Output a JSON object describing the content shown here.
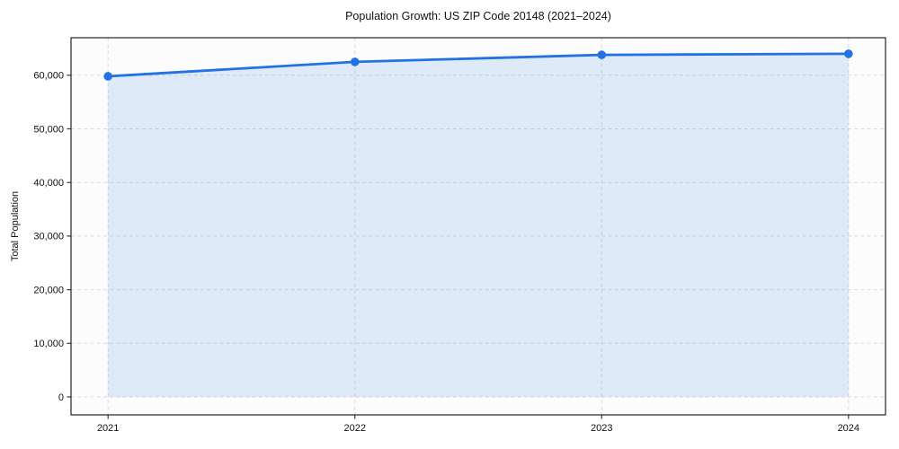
{
  "chart_data": {
    "type": "area",
    "title": "Population Growth: US ZIP Code 20148 (2021–2024)",
    "xlabel": "",
    "ylabel": "Total Population",
    "x": [
      2021,
      2022,
      2023,
      2024
    ],
    "series": [
      {
        "name": "Total Population",
        "values": [
          59800,
          62500,
          63800,
          64000
        ]
      }
    ],
    "xticks": [
      2021,
      2022,
      2023,
      2024
    ],
    "yticks": [
      0,
      10000,
      20000,
      30000,
      40000,
      50000,
      60000
    ],
    "xlim": [
      2020.85,
      2024.15
    ],
    "ylim": [
      -3350,
      67000
    ],
    "grid": true,
    "legend": false,
    "colors": {
      "line": "#2272e3",
      "marker": "#2272e3",
      "fill": "#2272e3",
      "fill_opacity": 0.13,
      "grid": "#d9d9d9",
      "spine": "#333333",
      "tick": "#333333",
      "text": "#111111",
      "plot_bg": "#fcfcfc",
      "page_bg": "#ffffff"
    }
  }
}
